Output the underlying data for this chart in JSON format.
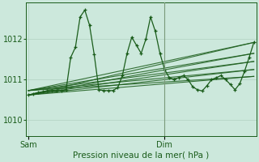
{
  "xlabel": "Pression niveau de la mer( hPa )",
  "bg_color": "#cce8dc",
  "grid_color": "#aaccbb",
  "line_color": "#1a5c1a",
  "marker": "+",
  "ylim": [
    1009.6,
    1012.9
  ],
  "yticks": [
    1010,
    1011,
    1012
  ],
  "xlim": [
    0,
    48
  ],
  "x_sam": 0,
  "x_dim": 29,
  "series": [
    [
      0,
      1010.62
    ],
    [
      1,
      1010.65
    ],
    [
      2,
      1010.68
    ],
    [
      3,
      1010.7
    ],
    [
      4,
      1010.72
    ],
    [
      5,
      1010.73
    ],
    [
      6,
      1010.73
    ],
    [
      7,
      1010.73
    ],
    [
      8,
      1010.74
    ],
    [
      9,
      1011.55
    ],
    [
      10,
      1011.8
    ],
    [
      11,
      1012.55
    ],
    [
      12,
      1012.72
    ],
    [
      13,
      1012.35
    ],
    [
      14,
      1011.62
    ],
    [
      15,
      1010.75
    ],
    [
      16,
      1010.73
    ],
    [
      17,
      1010.73
    ],
    [
      18,
      1010.73
    ],
    [
      19,
      1010.8
    ],
    [
      20,
      1011.1
    ],
    [
      21,
      1011.65
    ],
    [
      22,
      1012.05
    ],
    [
      23,
      1011.85
    ],
    [
      24,
      1011.65
    ],
    [
      25,
      1012.0
    ],
    [
      26,
      1012.55
    ],
    [
      27,
      1012.2
    ],
    [
      28,
      1011.65
    ],
    [
      29,
      1011.25
    ],
    [
      30,
      1011.05
    ],
    [
      31,
      1011.0
    ],
    [
      32,
      1011.05
    ],
    [
      33,
      1011.1
    ],
    [
      34,
      1011.0
    ],
    [
      35,
      1010.82
    ],
    [
      36,
      1010.75
    ],
    [
      37,
      1010.72
    ],
    [
      38,
      1010.85
    ],
    [
      39,
      1011.0
    ],
    [
      40,
      1011.05
    ],
    [
      41,
      1011.1
    ],
    [
      42,
      1011.0
    ],
    [
      43,
      1010.88
    ],
    [
      44,
      1010.75
    ],
    [
      45,
      1010.9
    ],
    [
      46,
      1011.2
    ],
    [
      47,
      1011.55
    ],
    [
      48,
      1011.92
    ]
  ],
  "fan_lines_start_x": 0,
  "fan_lines_end_x": 48,
  "fan_start_y": [
    1010.62,
    1010.62,
    1010.62,
    1010.62,
    1010.62,
    1010.73,
    1010.73,
    1010.73,
    1010.73,
    1010.73
  ],
  "fan_end_y": [
    1011.92,
    1011.65,
    1011.45,
    1011.25,
    1011.08,
    1011.92,
    1011.65,
    1011.45,
    1011.25,
    1011.08
  ],
  "vline_x": 29,
  "vline_color": "#7a9a7a",
  "x_tick_positions": [
    0,
    29
  ],
  "x_tick_labels": [
    "Sam",
    "Dim"
  ],
  "tick_color": "#1a5c1a",
  "tick_fontsize": 7,
  "xlabel_fontsize": 7.5,
  "ytick_fontsize": 7
}
